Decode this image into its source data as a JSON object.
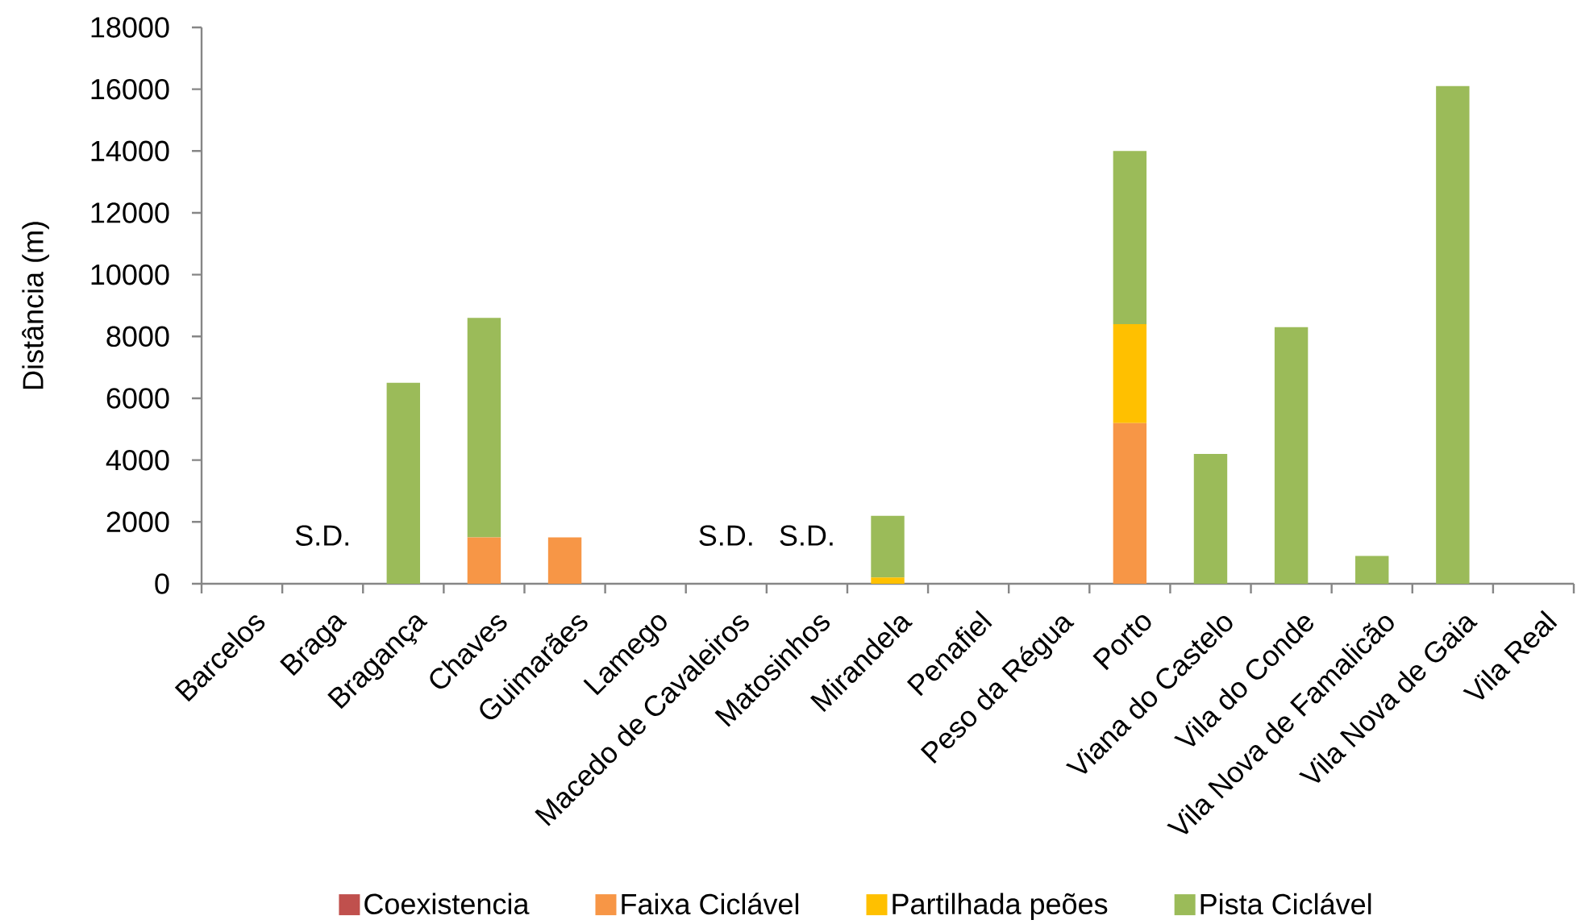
{
  "chart_data": {
    "type": "bar",
    "stacked": true,
    "ylabel": "Distância (m)",
    "categories": [
      "Barcelos",
      "Braga",
      "Bragança",
      "Chaves",
      "Guimarães",
      "Lamego",
      "Macedo de Cavaleiros",
      "Matosinhos",
      "Mirandela",
      "Penafiel",
      "Peso da Régua",
      "Porto",
      "Viana do Castelo",
      "Vila do Conde",
      "Vila Nova de Famalicão",
      "Vila Nova de Gaia",
      "Vila Real"
    ],
    "series": [
      {
        "name": "Coexistencia",
        "color": "#c0504d",
        "values": [
          null,
          null,
          null,
          null,
          null,
          null,
          null,
          null,
          null,
          null,
          null,
          null,
          null,
          null,
          null,
          null,
          null
        ],
        "value_labels": [
          null,
          "S.D.",
          null,
          null,
          null,
          null,
          "S.D.",
          "S.D.",
          null,
          null,
          null,
          null,
          null,
          null,
          null,
          null,
          null
        ]
      },
      {
        "name": "Faixa Ciclável",
        "color": "#f79646",
        "values": [
          null,
          null,
          null,
          1500,
          1500,
          null,
          null,
          null,
          null,
          null,
          null,
          5200,
          null,
          null,
          null,
          null,
          null
        ]
      },
      {
        "name": "Partilhada peões",
        "color": "#ffc000",
        "values": [
          null,
          null,
          null,
          null,
          null,
          null,
          null,
          null,
          200,
          null,
          null,
          3200,
          null,
          null,
          null,
          null,
          null
        ]
      },
      {
        "name": "Pista Ciclável",
        "color": "#9bbb59",
        "values": [
          null,
          null,
          6500,
          7100,
          null,
          null,
          null,
          null,
          2000,
          null,
          null,
          5600,
          4200,
          8300,
          900,
          16100,
          null
        ]
      }
    ],
    "ylim": [
      0,
      18000
    ],
    "yticks": [
      0,
      2000,
      4000,
      6000,
      8000,
      10000,
      12000,
      14000,
      16000,
      18000
    ],
    "legend": "bottom"
  }
}
